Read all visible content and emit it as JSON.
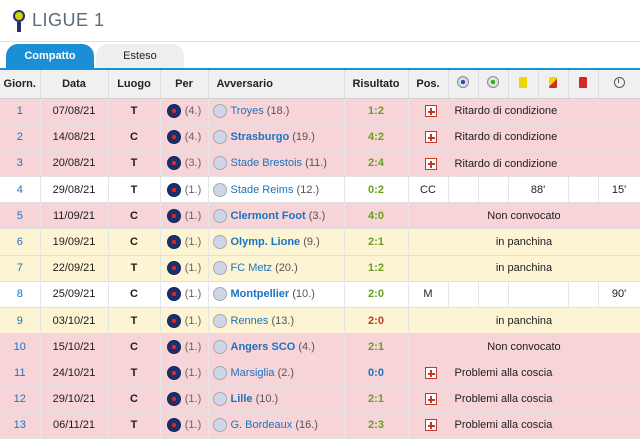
{
  "header": {
    "title": "LIGUE 1"
  },
  "tabs": [
    {
      "label": "Compatto",
      "active": true
    },
    {
      "label": "Esteso",
      "active": false
    }
  ],
  "columns": {
    "giorn": "Giorn.",
    "data": "Data",
    "luogo": "Luogo",
    "per": "Per",
    "avversario": "Avversario",
    "risultato": "Risultato",
    "pos": "Pos."
  },
  "column_icons": [
    "goal-ball-icon",
    "assist-ball-icon",
    "yellow-card-icon",
    "yellow-red-card-icon",
    "red-card-icon",
    "clock-icon"
  ],
  "colors": {
    "accent": "#1a8fd6",
    "row_red": "#f7d4d8",
    "row_yellow": "#fdf4d3",
    "win": "#6b9e1f",
    "loss": "#c0392b",
    "draw": "#1a73c0"
  },
  "rows": [
    {
      "giorn": "1",
      "data": "07/08/21",
      "luogo": "T",
      "per_pos": "(4.)",
      "opp": "Troyes",
      "opp_pos": "(18.)",
      "opp_bold": false,
      "res": "1:2",
      "res_type": "win",
      "row_type": "red",
      "injury": true,
      "status": "Ritardo di condizione",
      "pos": "",
      "assist": "",
      "min": ""
    },
    {
      "giorn": "2",
      "data": "14/08/21",
      "luogo": "C",
      "per_pos": "(4.)",
      "opp": "Strasburgo",
      "opp_pos": "(19.)",
      "opp_bold": true,
      "res": "4:2",
      "res_type": "win",
      "row_type": "red",
      "injury": true,
      "status": "Ritardo di condizione",
      "pos": "",
      "assist": "",
      "min": ""
    },
    {
      "giorn": "3",
      "data": "20/08/21",
      "luogo": "T",
      "per_pos": "(3.)",
      "opp": "Stade Brestois",
      "opp_pos": "(11.)",
      "opp_bold": false,
      "res": "2:4",
      "res_type": "win",
      "row_type": "red",
      "injury": true,
      "status": "Ritardo di condizione",
      "pos": "",
      "assist": "",
      "min": ""
    },
    {
      "giorn": "4",
      "data": "29/08/21",
      "luogo": "T",
      "per_pos": "(1.)",
      "opp": "Stade Reims",
      "opp_pos": "(12.)",
      "opp_bold": false,
      "res": "0:2",
      "res_type": "win",
      "row_type": "white",
      "injury": false,
      "status": "",
      "pos": "CC",
      "assist": "88'",
      "min": "15'"
    },
    {
      "giorn": "5",
      "data": "11/09/21",
      "luogo": "C",
      "per_pos": "(1.)",
      "opp": "Clermont Foot",
      "opp_pos": "(3.)",
      "opp_bold": true,
      "res": "4:0",
      "res_type": "win",
      "row_type": "red",
      "injury": false,
      "status": "Non convocato",
      "pos": "",
      "assist": "",
      "min": ""
    },
    {
      "giorn": "6",
      "data": "19/09/21",
      "luogo": "C",
      "per_pos": "(1.)",
      "opp": "Olymp. Lione",
      "opp_pos": "(9.)",
      "opp_bold": true,
      "res": "2:1",
      "res_type": "win",
      "row_type": "yellow",
      "injury": false,
      "status": "in panchina",
      "pos": "",
      "assist": "",
      "min": ""
    },
    {
      "giorn": "7",
      "data": "22/09/21",
      "luogo": "T",
      "per_pos": "(1.)",
      "opp": "FC Metz",
      "opp_pos": "(20.)",
      "opp_bold": false,
      "res": "1:2",
      "res_type": "win",
      "row_type": "yellow",
      "injury": false,
      "status": "in panchina",
      "pos": "",
      "assist": "",
      "min": ""
    },
    {
      "giorn": "8",
      "data": "25/09/21",
      "luogo": "C",
      "per_pos": "(1.)",
      "opp": "Montpellier",
      "opp_pos": "(10.)",
      "opp_bold": true,
      "res": "2:0",
      "res_type": "win",
      "row_type": "white",
      "injury": false,
      "status": "",
      "pos": "M",
      "assist": "",
      "min": "90'"
    },
    {
      "giorn": "9",
      "data": "03/10/21",
      "luogo": "T",
      "per_pos": "(1.)",
      "opp": "Rennes",
      "opp_pos": "(13.)",
      "opp_bold": false,
      "res": "2:0",
      "res_type": "loss",
      "row_type": "yellow",
      "injury": false,
      "status": "in panchina",
      "pos": "",
      "assist": "",
      "min": ""
    },
    {
      "giorn": "10",
      "data": "15/10/21",
      "luogo": "C",
      "per_pos": "(1.)",
      "opp": "Angers SCO",
      "opp_pos": "(4.)",
      "opp_bold": true,
      "res": "2:1",
      "res_type": "win",
      "row_type": "red",
      "injury": false,
      "status": "Non convocato",
      "pos": "",
      "assist": "",
      "min": ""
    },
    {
      "giorn": "11",
      "data": "24/10/21",
      "luogo": "T",
      "per_pos": "(1.)",
      "opp": "Marsiglia",
      "opp_pos": "(2.)",
      "opp_bold": false,
      "res": "0:0",
      "res_type": "draw",
      "row_type": "red",
      "injury": true,
      "status": "Problemi alla coscia",
      "pos": "",
      "assist": "",
      "min": ""
    },
    {
      "giorn": "12",
      "data": "29/10/21",
      "luogo": "C",
      "per_pos": "(1.)",
      "opp": "Lille",
      "opp_pos": "(10.)",
      "opp_bold": true,
      "res": "2:1",
      "res_type": "win",
      "row_type": "red",
      "injury": true,
      "status": "Problemi alla coscia",
      "pos": "",
      "assist": "",
      "min": ""
    },
    {
      "giorn": "13",
      "data": "06/11/21",
      "luogo": "T",
      "per_pos": "(1.)",
      "opp": "G. Bordeaux",
      "opp_pos": "(16.)",
      "opp_bold": false,
      "res": "2:3",
      "res_type": "win",
      "row_type": "red",
      "injury": true,
      "status": "Problemi alla coscia",
      "pos": "",
      "assist": "",
      "min": ""
    }
  ]
}
